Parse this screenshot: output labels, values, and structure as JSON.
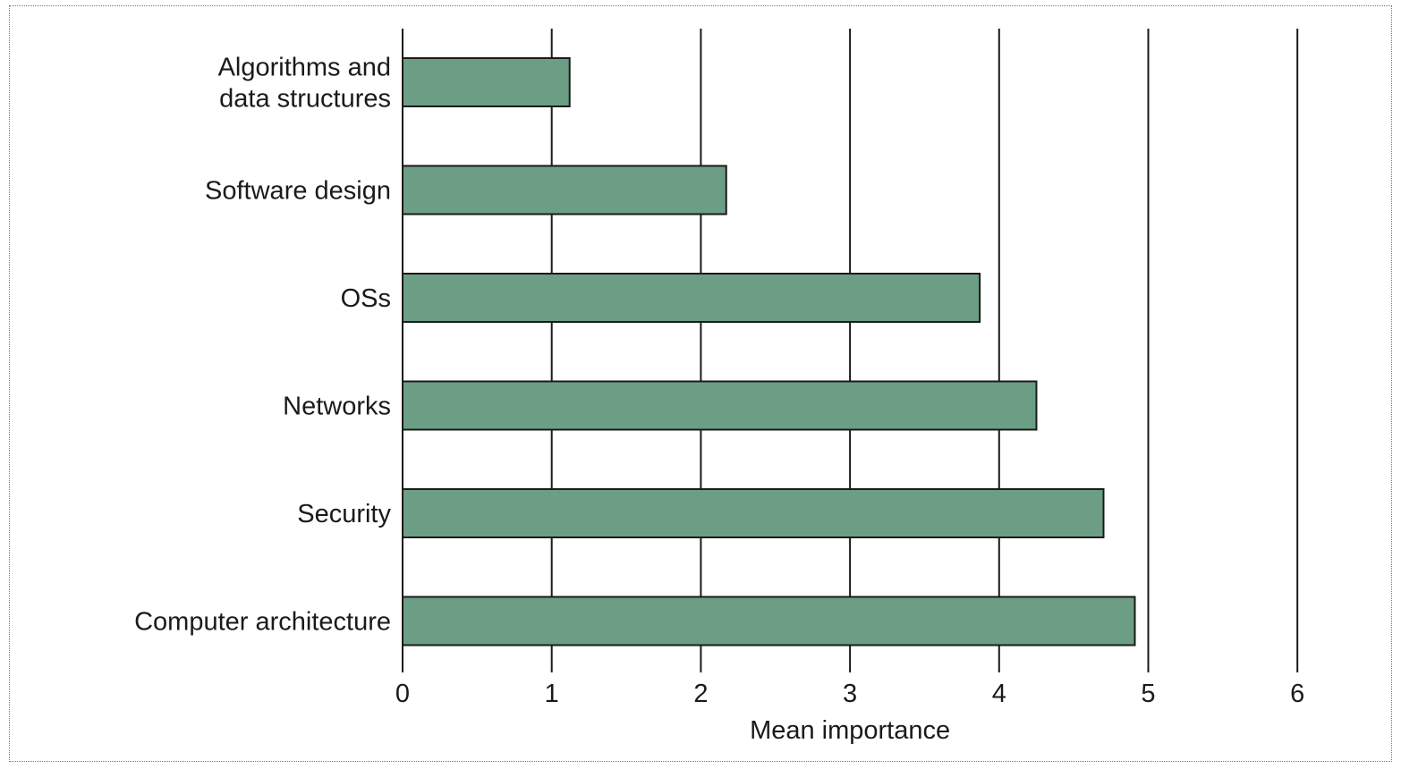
{
  "chart_data": {
    "type": "bar",
    "orientation": "horizontal",
    "categories": [
      [
        "Algorithms and",
        "data structures"
      ],
      [
        "Software design"
      ],
      [
        "OSs"
      ],
      [
        "Networks"
      ],
      [
        "Security"
      ],
      [
        "Computer architecture"
      ]
    ],
    "values": [
      1.12,
      2.17,
      3.87,
      4.25,
      4.7,
      4.91
    ],
    "xlabel": "Mean importance",
    "xlim": [
      0,
      6
    ],
    "xticks": [
      "0",
      "1",
      "2",
      "3",
      "4",
      "5",
      "6"
    ],
    "grid": "vertical",
    "bar_color": "#6b9e84",
    "bar_edge_color": "#1a1a1a"
  }
}
